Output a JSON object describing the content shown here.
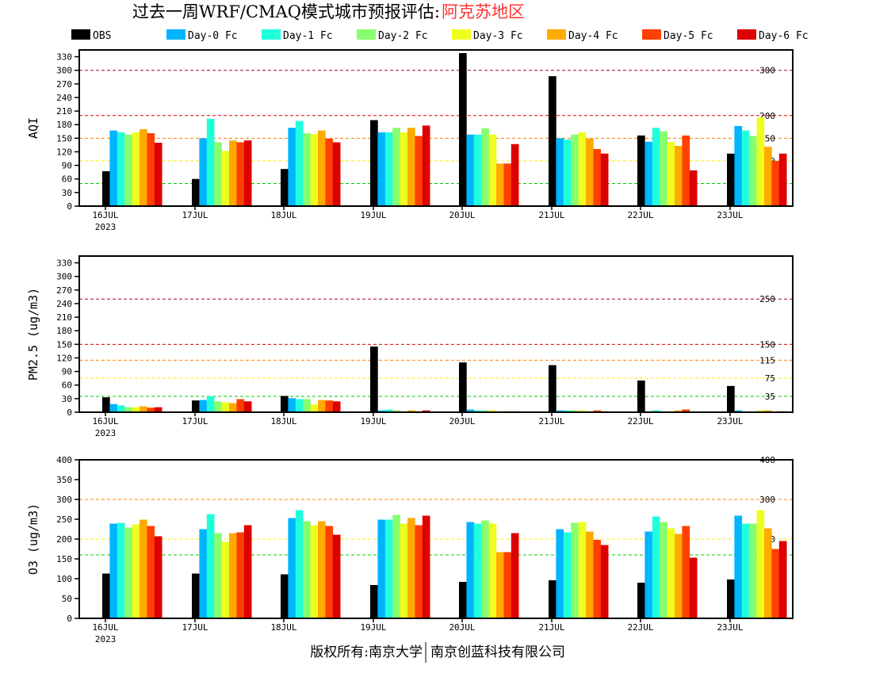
{
  "header": {
    "title_main": "过去一周WRF/CMAQ模式城市预报评估:",
    "title_region": "阿克苏地区"
  },
  "footer": {
    "left": "版权所有:南京大学",
    "right": "南京创蓝科技有限公司"
  },
  "colors": {
    "OBS": "#000000",
    "Day-0 Fc": "#00b4ff",
    "Day-1 Fc": "#20ffdc",
    "Day-2 Fc": "#88ff70",
    "Day-3 Fc": "#eeff20",
    "Day-4 Fc": "#ffaa00",
    "Day-5 Fc": "#ff4000",
    "Day-6 Fc": "#dd0000"
  },
  "chart_data": [
    {
      "type": "bar",
      "ylabel": "AQI",
      "ylim": [
        0,
        345
      ],
      "yticks": [
        0,
        30,
        60,
        90,
        120,
        150,
        180,
        210,
        240,
        270,
        300,
        330
      ],
      "categories": [
        "16JUL",
        "17JUL",
        "18JUL",
        "19JUL",
        "20JUL",
        "21JUL",
        "22JUL",
        "23JUL"
      ],
      "first_category_sub": "2023",
      "thresholds": [
        {
          "value": 50,
          "label": "50",
          "color": "#00cc00"
        },
        {
          "value": 100,
          "label": "100",
          "color": "#ffee00"
        },
        {
          "value": 150,
          "label": "150",
          "color": "#ff8000"
        },
        {
          "value": 200,
          "label": "200",
          "color": "#e00000"
        },
        {
          "value": 300,
          "label": "300",
          "color": "#a00050"
        }
      ],
      "series": [
        {
          "name": "OBS",
          "values": [
            77,
            60,
            82,
            190,
            338,
            287,
            156,
            116
          ]
        },
        {
          "name": "Day-0 Fc",
          "values": [
            167,
            150,
            173,
            163,
            158,
            150,
            142,
            177
          ]
        },
        {
          "name": "Day-1 Fc",
          "values": [
            163,
            193,
            188,
            163,
            158,
            147,
            173,
            167
          ]
        },
        {
          "name": "Day-2 Fc",
          "values": [
            158,
            141,
            161,
            173,
            172,
            158,
            165,
            155
          ]
        },
        {
          "name": "Day-3 Fc",
          "values": [
            163,
            122,
            159,
            163,
            158,
            163,
            142,
            196
          ]
        },
        {
          "name": "Day-4 Fc",
          "values": [
            170,
            145,
            167,
            173,
            94,
            149,
            133,
            131
          ]
        },
        {
          "name": "Day-5 Fc",
          "values": [
            161,
            141,
            149,
            155,
            94,
            126,
            156,
            100
          ]
        },
        {
          "name": "Day-6 Fc",
          "values": [
            140,
            145,
            141,
            178,
            137,
            116,
            79,
            116
          ]
        }
      ]
    },
    {
      "type": "bar",
      "ylabel": "PM2.5 (ug/m3)",
      "ylim": [
        0,
        345
      ],
      "yticks": [
        0,
        30,
        60,
        90,
        120,
        150,
        180,
        210,
        240,
        270,
        300,
        330
      ],
      "categories": [
        "16JUL",
        "17JUL",
        "18JUL",
        "19JUL",
        "20JUL",
        "21JUL",
        "22JUL",
        "23JUL"
      ],
      "first_category_sub": "2023",
      "thresholds": [
        {
          "value": 35,
          "label": "35",
          "color": "#00cc00"
        },
        {
          "value": 75,
          "label": "75",
          "color": "#ffee00"
        },
        {
          "value": 115,
          "label": "115",
          "color": "#ff8000"
        },
        {
          "value": 150,
          "label": "150",
          "color": "#e00000"
        },
        {
          "value": 250,
          "label": "250",
          "color": "#a00050"
        }
      ],
      "series": [
        {
          "name": "OBS",
          "values": [
            33,
            26,
            36,
            145,
            110,
            104,
            70,
            58
          ]
        },
        {
          "name": "Day-0 Fc",
          "values": [
            18,
            27,
            31,
            4,
            6,
            4,
            2,
            4
          ]
        },
        {
          "name": "Day-1 Fc",
          "values": [
            15,
            35,
            29,
            6,
            4,
            4,
            4,
            2
          ]
        },
        {
          "name": "Day-2 Fc",
          "values": [
            11,
            24,
            29,
            4,
            4,
            4,
            2,
            2
          ]
        },
        {
          "name": "Day-3 Fc",
          "values": [
            11,
            22,
            17,
            2,
            4,
            4,
            2,
            4
          ]
        },
        {
          "name": "Day-4 Fc",
          "values": [
            13,
            20,
            27,
            4,
            2,
            2,
            4,
            4
          ]
        },
        {
          "name": "Day-5 Fc",
          "values": [
            10,
            29,
            26,
            2,
            2,
            4,
            6,
            0
          ]
        },
        {
          "name": "Day-6 Fc",
          "values": [
            11,
            24,
            24,
            4,
            2,
            2,
            1,
            2
          ]
        }
      ]
    },
    {
      "type": "bar",
      "ylabel": "O3 (ug/m3)",
      "ylim": [
        0,
        400
      ],
      "yticks": [
        0,
        50,
        100,
        150,
        200,
        250,
        300,
        350,
        400
      ],
      "categories": [
        "16JUL",
        "17JUL",
        "18JUL",
        "19JUL",
        "20JUL",
        "21JUL",
        "22JUL",
        "23JUL"
      ],
      "first_category_sub": "2023",
      "thresholds": [
        {
          "value": 160,
          "label": "160",
          "color": "#00cc00"
        },
        {
          "value": 200,
          "label": "200",
          "color": "#ffee00"
        },
        {
          "value": 300,
          "label": "300",
          "color": "#ff8000"
        },
        {
          "value": 400,
          "label": "400",
          "color": "#e00000"
        }
      ],
      "series": [
        {
          "name": "OBS",
          "values": [
            113,
            113,
            111,
            84,
            92,
            96,
            90,
            98
          ]
        },
        {
          "name": "Day-0 Fc",
          "values": [
            239,
            225,
            253,
            249,
            243,
            225,
            219,
            259
          ]
        },
        {
          "name": "Day-1 Fc",
          "values": [
            241,
            263,
            273,
            249,
            239,
            217,
            257,
            239
          ]
        },
        {
          "name": "Day-2 Fc",
          "values": [
            229,
            215,
            245,
            261,
            247,
            241,
            243,
            239
          ]
        },
        {
          "name": "Day-3 Fc",
          "values": [
            237,
            193,
            235,
            239,
            239,
            243,
            227,
            273
          ]
        },
        {
          "name": "Day-4 Fc",
          "values": [
            249,
            215,
            245,
            253,
            167,
            219,
            213,
            227
          ]
        },
        {
          "name": "Day-5 Fc",
          "values": [
            233,
            217,
            233,
            235,
            167,
            198,
            233,
            175
          ]
        },
        {
          "name": "Day-6 Fc",
          "values": [
            207,
            235,
            211,
            259,
            215,
            185,
            153,
            195
          ]
        }
      ]
    }
  ]
}
